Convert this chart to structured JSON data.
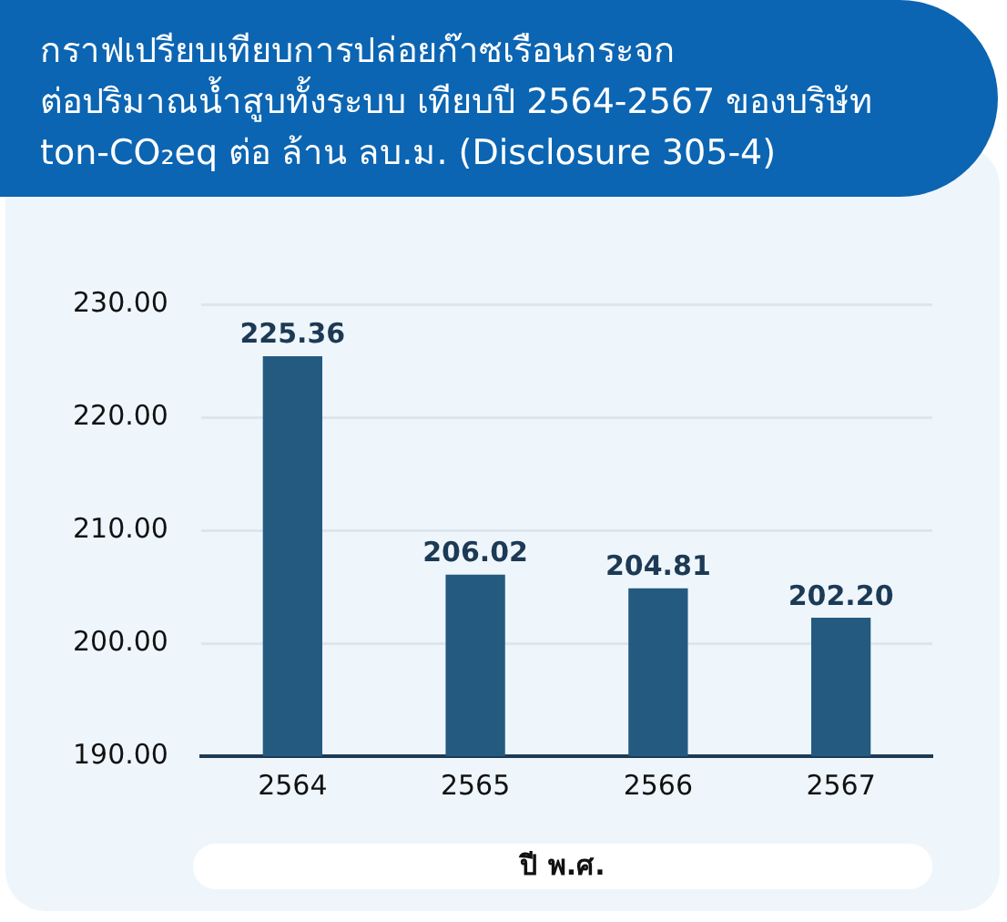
{
  "chart_data": {
    "type": "bar",
    "title": "กราฟเปรียบเทียบการปล่อยก๊าซเรือนกระจก\nต่อปริมาณน้ำสูบทั้งระบบ เทียบปี 2564-2567 ของบริษัท\nton-CO₂eq ต่อ ล้าน ลบ.ม. (Disclosure 305-4)",
    "xlabel": "ปี พ.ศ.",
    "categories": [
      "2564",
      "2565",
      "2566",
      "2567"
    ],
    "values": [
      225.36,
      206.02,
      204.81,
      202.2
    ],
    "value_labels": [
      "225.36",
      "206.02",
      "204.81",
      "202.20"
    ],
    "color": "#245a80",
    "ylim": [
      190,
      230
    ],
    "yticks": [
      {
        "value": 190,
        "label": "190.00"
      },
      {
        "value": 200,
        "label": "200.00"
      },
      {
        "value": 210,
        "label": "210.00"
      },
      {
        "value": 220,
        "label": "220.00"
      },
      {
        "value": 230,
        "label": "230.00"
      }
    ],
    "grid": "y"
  }
}
